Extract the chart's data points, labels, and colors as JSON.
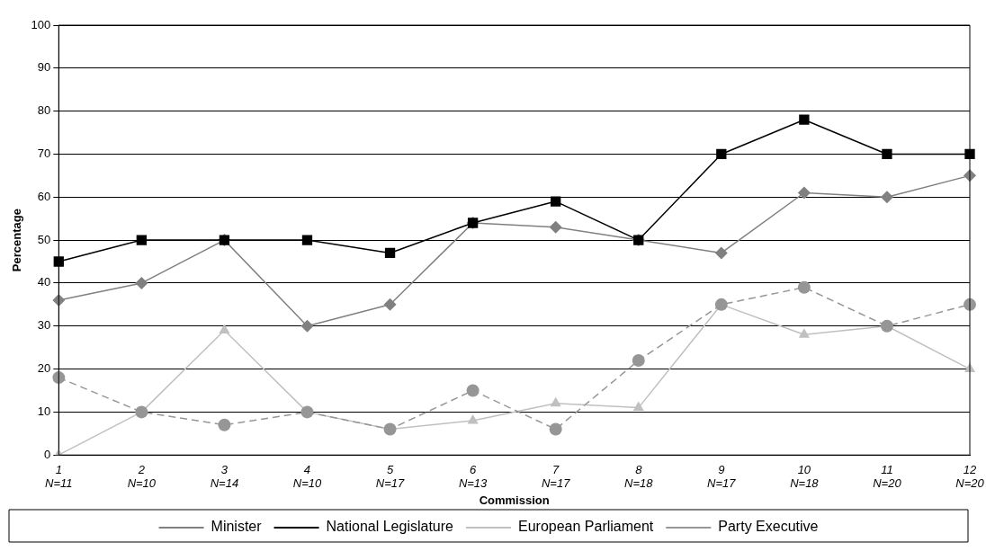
{
  "chart_data": {
    "type": "line",
    "xlabel": "Commission",
    "ylabel": "Percentage",
    "categories": [
      "1\nN=11",
      "2\nN=10",
      "3\nN=14",
      "4\nN=10",
      "5\nN=17",
      "6\nN=13",
      "7\nN=17",
      "8\nN=18",
      "9\nN=17",
      "10\nN=18",
      "11\nN=20",
      "12\nN=20"
    ],
    "series": [
      {
        "name": "Minister",
        "color": "#808080",
        "marker": "diamond",
        "line_style": "solid",
        "values": [
          36,
          40,
          50,
          30,
          35,
          54,
          53,
          50,
          47,
          61,
          60,
          65
        ]
      },
      {
        "name": "National Legislature",
        "color": "#000000",
        "marker": "square",
        "line_style": "solid",
        "values": [
          45,
          50,
          50,
          50,
          47,
          54,
          59,
          50,
          70,
          78,
          70,
          70
        ]
      },
      {
        "name": "European Parliament",
        "color": "#c0c0c0",
        "marker": "triangle",
        "line_style": "solid",
        "values": [
          0,
          10,
          29,
          10,
          6,
          8,
          12,
          11,
          35,
          28,
          30,
          20
        ]
      },
      {
        "name": "Party Executive",
        "color": "#969696",
        "marker": "circle",
        "line_style": "dashed",
        "values": [
          18,
          10,
          7,
          10,
          6,
          15,
          6,
          22,
          35,
          39,
          30,
          35
        ]
      }
    ],
    "ylim": [
      0,
      100
    ],
    "yticks": [
      0,
      10,
      20,
      30,
      40,
      50,
      60,
      70,
      80,
      90,
      100
    ],
    "grid": "y",
    "legend": "bottom"
  }
}
